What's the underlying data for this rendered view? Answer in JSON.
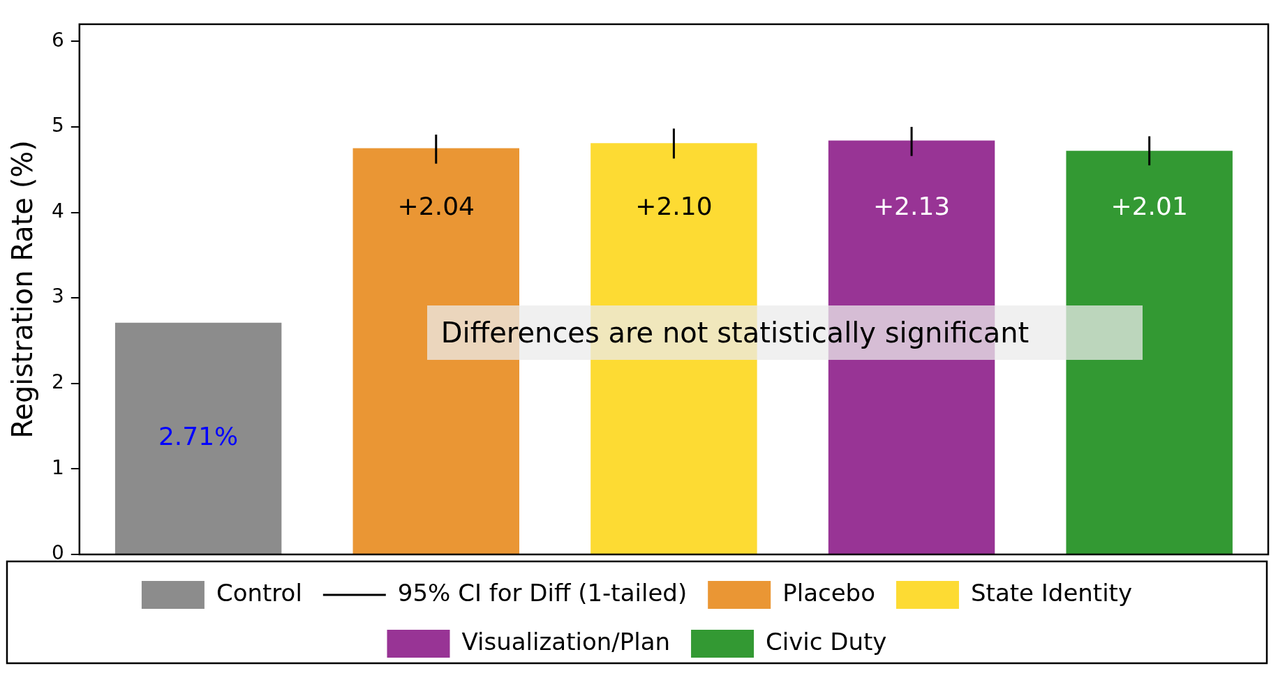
{
  "chart_data": {
    "type": "bar",
    "ylabel": "Registration Rate (%)",
    "categories": [
      null,
      null,
      null,
      null,
      null
    ],
    "stacked": true,
    "ylim": [
      0,
      6.2
    ],
    "yticks": [
      0,
      1,
      2,
      3,
      4,
      5,
      6
    ],
    "grid": false,
    "legend": "bottom",
    "tick_labels": "y",
    "series": [
      {
        "name": "Control",
        "color": "#8c8c8c",
        "values": [
          2.71,
          null,
          null,
          null,
          null
        ],
        "value_labels": [
          "2.71%",
          null,
          null,
          null,
          null
        ]
      },
      {
        "name": "Placebo",
        "color": "#ea9634",
        "values": [
          null,
          4.75,
          null,
          null,
          null
        ],
        "errors": [
          null,
          [
            4.57,
            4.91
          ],
          null,
          null,
          null
        ]
      },
      {
        "name": "State Identity",
        "color": "#fddb33",
        "values": [
          null,
          null,
          4.81,
          null,
          null
        ],
        "errors": [
          null,
          null,
          [
            4.63,
            4.98
          ],
          null,
          null
        ]
      },
      {
        "name": "Visualization/Plan",
        "color": "#983495",
        "values": [
          null,
          null,
          null,
          4.84,
          null
        ],
        "errors": [
          null,
          null,
          null,
          [
            4.66,
            5.0
          ],
          null
        ]
      },
      {
        "name": "Civic Duty",
        "color": "#339933",
        "values": [
          null,
          null,
          null,
          null,
          4.72
        ],
        "errors": [
          null,
          null,
          null,
          null,
          [
            4.55,
            4.89
          ]
        ]
      }
    ],
    "annotations": [
      "Differences are not statistically significant",
      "95% CI for Diff (1-tailed)",
      "+2.04",
      "+2.10",
      "+2.13",
      "+2.01"
    ]
  }
}
